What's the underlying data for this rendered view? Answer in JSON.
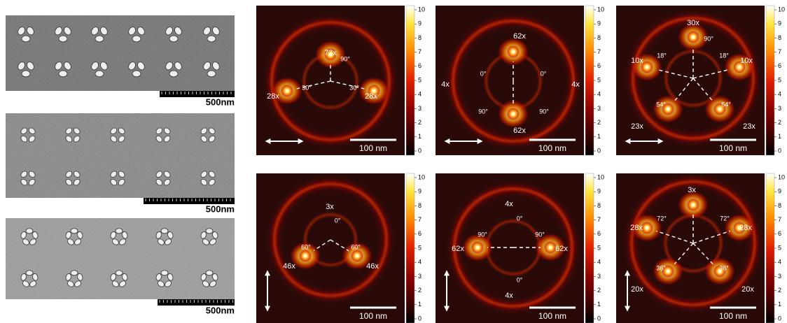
{
  "sem_panels": [
    {
      "scale_bar": "500nm"
    },
    {
      "scale_bar": "500nm"
    },
    {
      "scale_bar": "500nm"
    }
  ],
  "field_maps": [
    {
      "colorbar_ticks": [
        0,
        1,
        2,
        3,
        4,
        5,
        6,
        7,
        8,
        9,
        10
      ],
      "scale_bar": "100 nm",
      "labels": [
        "73x",
        "90°",
        "30°",
        "30°",
        "28x",
        "28x"
      ]
    },
    {
      "colorbar_ticks": [
        0,
        1,
        2,
        3,
        4,
        5,
        6,
        7,
        8,
        9,
        10
      ],
      "scale_bar": "100 nm",
      "labels": [
        "62x",
        "0°",
        "0°",
        "4x",
        "4x",
        "90°",
        "90°",
        "62x"
      ]
    },
    {
      "colorbar_ticks": [
        0,
        1,
        2,
        3,
        4,
        5,
        6,
        7,
        8,
        9,
        10
      ],
      "scale_bar": "100 nm",
      "labels": [
        "30x",
        "90°",
        "18°",
        "18°",
        "10x",
        "10x",
        "54°",
        "54°",
        "23x",
        "23x"
      ]
    },
    {
      "colorbar_ticks": [
        0,
        1,
        2,
        3,
        4,
        5,
        6,
        7,
        8,
        9,
        10
      ],
      "scale_bar": "100 nm",
      "labels": [
        "3x",
        "0°",
        "60°",
        "60°",
        "46x",
        "46x"
      ]
    },
    {
      "colorbar_ticks": [
        0,
        1,
        2,
        3,
        4,
        5,
        6,
        7,
        8,
        9,
        10
      ],
      "scale_bar": "100 nm",
      "labels": [
        "4x",
        "0°",
        "90°",
        "90°",
        "62x",
        "62x",
        "0°",
        "4x"
      ]
    },
    {
      "colorbar_ticks": [
        0,
        1,
        2,
        3,
        4,
        5,
        6,
        7,
        8,
        9,
        10
      ],
      "scale_bar": "100 nm",
      "labels": [
        "3x",
        "28x",
        "72°",
        "72°",
        "28x",
        "36°",
        "36°",
        "20x",
        "20x"
      ]
    }
  ]
}
